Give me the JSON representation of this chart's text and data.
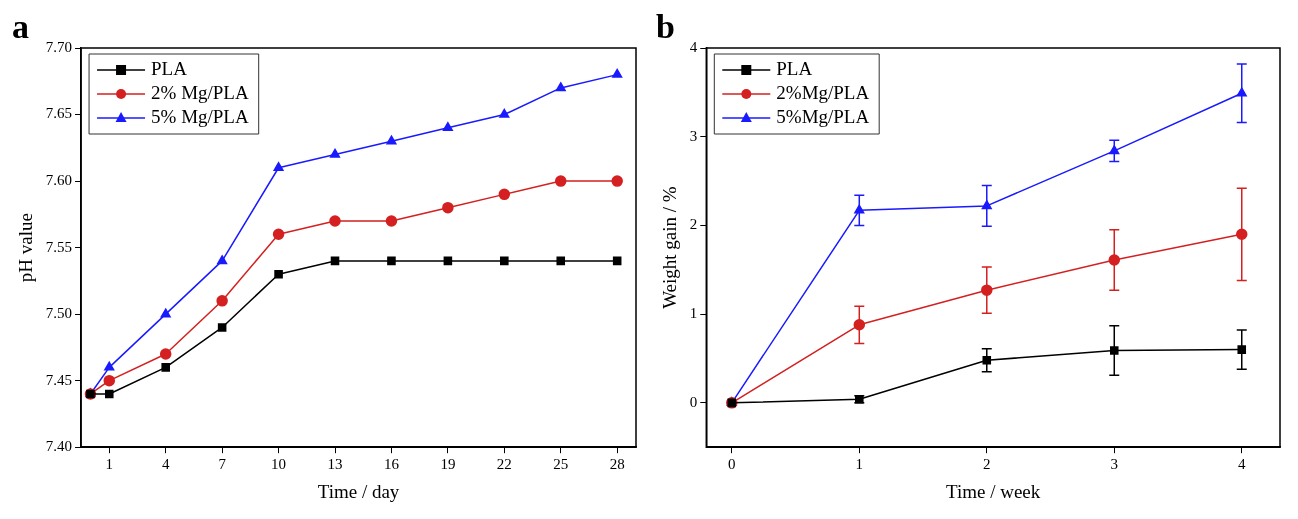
{
  "chart_data": [
    {
      "type": "line",
      "title": "a",
      "xlabel": "Time / day",
      "ylabel": "pH value",
      "x": [
        0,
        1,
        4,
        7,
        10,
        13,
        16,
        19,
        22,
        25,
        28
      ],
      "series": [
        {
          "name": "PLA",
          "color": "#000000",
          "marker": "square",
          "values": [
            7.44,
            7.44,
            7.46,
            7.49,
            7.53,
            7.54,
            7.54,
            7.54,
            7.54,
            7.54,
            7.54
          ]
        },
        {
          "name": "2% Mg/PLA",
          "color": "#d42020",
          "marker": "circle",
          "values": [
            7.44,
            7.45,
            7.47,
            7.51,
            7.56,
            7.57,
            7.57,
            7.58,
            7.59,
            7.6,
            7.6
          ]
        },
        {
          "name": "5% Mg/PLA",
          "color": "#1a1aff",
          "marker": "triangle",
          "values": [
            7.44,
            7.46,
            7.5,
            7.54,
            7.61,
            7.62,
            7.63,
            7.64,
            7.65,
            7.67,
            7.68
          ]
        }
      ],
      "xlim": [
        -0.5,
        29
      ],
      "xticks": [
        1,
        4,
        7,
        10,
        13,
        16,
        19,
        22,
        25,
        28
      ],
      "ylim": [
        7.4,
        7.7
      ],
      "yticks": [
        {
          "value": 7.4,
          "label": "7.40"
        },
        {
          "value": 7.45,
          "label": "7.45"
        },
        {
          "value": 7.5,
          "label": "7.50"
        },
        {
          "value": 7.55,
          "label": "7.55"
        },
        {
          "value": 7.6,
          "label": "7.60"
        },
        {
          "value": 7.65,
          "label": "7.65"
        },
        {
          "value": 7.7,
          "label": "7.70"
        }
      ],
      "legend": "top left",
      "grid": false
    },
    {
      "type": "line",
      "title": "b",
      "xlabel": "Time / week",
      "ylabel": "Weight gain / %",
      "x": [
        0,
        1,
        2,
        3,
        4
      ],
      "series": [
        {
          "name": "PLA",
          "color": "#000000",
          "marker": "square",
          "values": [
            0,
            0.04,
            0.48,
            0.59,
            0.6
          ],
          "errors": [
            null,
            0.04,
            0.13,
            0.28,
            0.22
          ]
        },
        {
          "name": "2%Mg/PLA",
          "color": "#d42020",
          "marker": "circle",
          "values": [
            0,
            0.88,
            1.27,
            1.61,
            1.9
          ],
          "errors": [
            null,
            0.21,
            0.26,
            0.34,
            0.52
          ]
        },
        {
          "name": "5%Mg/PLA",
          "color": "#1a1aff",
          "marker": "triangle",
          "values": [
            0,
            2.17,
            2.22,
            2.84,
            3.49
          ],
          "errors": [
            null,
            0.17,
            0.23,
            0.12,
            0.33
          ]
        }
      ],
      "xlim": [
        -0.2,
        4.3
      ],
      "xticks": [
        0,
        1,
        2,
        3,
        4
      ],
      "ylim": [
        -0.5,
        4
      ],
      "yticks": [
        0,
        1,
        2,
        3,
        4
      ],
      "legend": "top left",
      "grid": false
    }
  ]
}
